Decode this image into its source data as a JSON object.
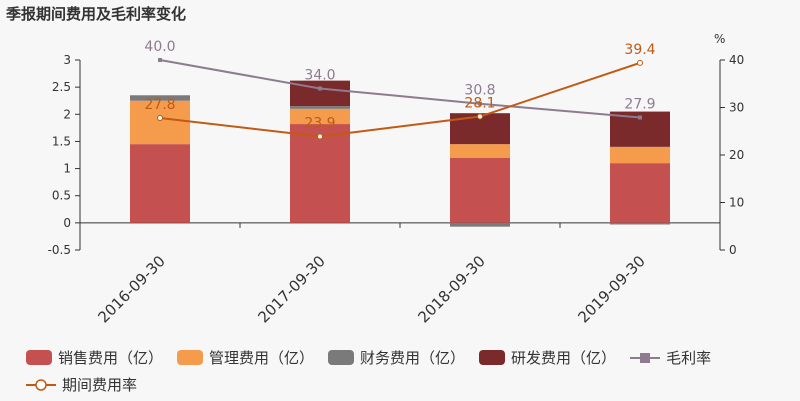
{
  "title": "季报期间费用及毛利率变化",
  "chart_data": {
    "type": "bar",
    "stacked": true,
    "categories": [
      "2016-09-30",
      "2017-09-30",
      "2018-09-30",
      "2019-09-30"
    ],
    "series": [
      {
        "name": "销售费用（亿）",
        "type": "bar",
        "axis": "left",
        "color": "#c4504f",
        "values": [
          1.45,
          1.82,
          1.2,
          1.1
        ]
      },
      {
        "name": "管理费用（亿）",
        "type": "bar",
        "axis": "left",
        "color": "#f59b4c",
        "values": [
          0.8,
          0.28,
          0.25,
          0.3
        ]
      },
      {
        "name": "财务费用（亿）",
        "type": "bar",
        "axis": "left",
        "color": "#7a7a7a",
        "values": [
          0.1,
          0.05,
          -0.07,
          -0.03
        ]
      },
      {
        "name": "研发费用（亿）",
        "type": "bar",
        "axis": "left",
        "color": "#7a2a2a",
        "values": [
          0.0,
          0.47,
          0.57,
          0.65
        ]
      },
      {
        "name": "毛利率",
        "type": "line",
        "axis": "right",
        "color": "#8e7b8f",
        "values": [
          40.0,
          34.0,
          30.8,
          27.9
        ]
      },
      {
        "name": "期间费用率",
        "type": "line",
        "axis": "right",
        "color": "#c05a14",
        "values": [
          27.8,
          23.9,
          28.1,
          39.4
        ]
      }
    ],
    "left_axis": {
      "ylim": [
        -0.5,
        3
      ],
      "ticks": [
        "-0.5",
        "0",
        "0.5",
        "1",
        "1.5",
        "2",
        "2.5",
        "3"
      ]
    },
    "right_axis": {
      "label": "%",
      "ylim": [
        0,
        40
      ],
      "ticks": [
        "0",
        "10",
        "20",
        "30",
        "40"
      ]
    },
    "grid": false,
    "legend_position": "bottom"
  }
}
